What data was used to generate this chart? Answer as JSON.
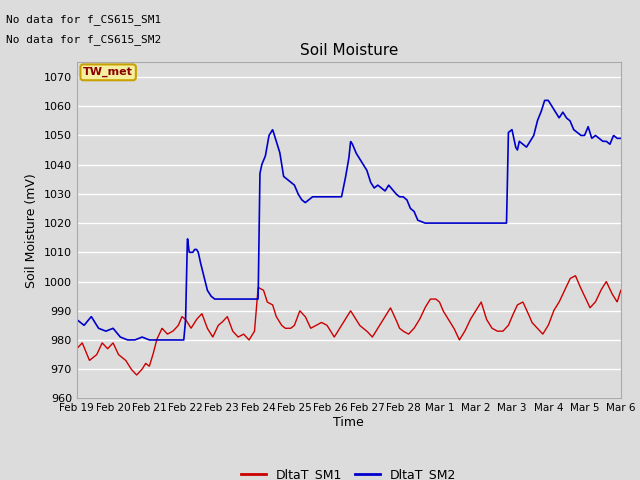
{
  "title": "Soil Moisture",
  "ylabel": "Soil Moisture (mV)",
  "xlabel": "Time",
  "ylim": [
    960,
    1075
  ],
  "yticks": [
    960,
    970,
    980,
    990,
    1000,
    1010,
    1020,
    1030,
    1040,
    1050,
    1060,
    1070
  ],
  "bg_color": "#dcdcdc",
  "plot_bg_color": "#dcdcdc",
  "grid_color": "white",
  "line1_color": "#cc0000",
  "line2_color": "#0000cc",
  "legend_labels": [
    "DltaT_SM1",
    "DltaT_SM2"
  ],
  "no_data_text1": "No data for f_CS615_SM1",
  "no_data_text2": "No data for f_CS615_SM2",
  "tw_met_label": "TW_met",
  "x_tick_labels": [
    "Feb 19",
    "Feb 20",
    "Feb 21",
    "Feb 22",
    "Feb 23",
    "Feb 24",
    "Feb 25",
    "Feb 26",
    "Feb 27",
    "Feb 28",
    "Mar 1",
    "Mar 2",
    "Mar 3",
    "Mar 4",
    "Mar 5",
    "Mar 6"
  ]
}
